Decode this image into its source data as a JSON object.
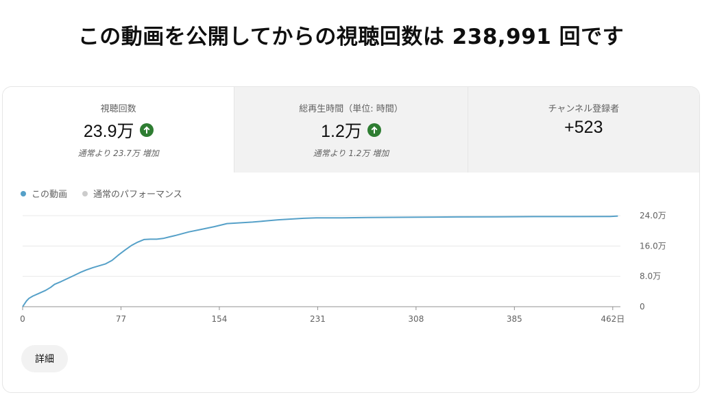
{
  "headline": "この動画を公開してからの視聴回数は 238,991 回です",
  "tabs": [
    {
      "label": "視聴回数",
      "value": "23.9万",
      "trend": "up",
      "subtext": "通常より 23.7万 増加"
    },
    {
      "label": "総再生時間（単位: 時間）",
      "value": "1.2万",
      "trend": "up",
      "subtext": "通常より 1.2万 増加"
    },
    {
      "label": "チャンネル登録者",
      "value": "+523"
    }
  ],
  "legend": [
    {
      "label": "この動画",
      "color": "#55a0c8"
    },
    {
      "label": "通常のパフォーマンス",
      "color": "#cccccc"
    }
  ],
  "details_label": "詳細",
  "colors": {
    "accent": "#55a0c8",
    "trend_up": "#2e7d32"
  },
  "chart_data": {
    "type": "line",
    "xlabel": "",
    "ylabel": "",
    "xlim": [
      0,
      468
    ],
    "ylim": [
      0,
      240000
    ],
    "x_ticks": [
      0,
      77,
      154,
      231,
      308,
      385,
      462
    ],
    "x_tick_labels": [
      "0",
      "77",
      "154",
      "231",
      "308",
      "385",
      "462日"
    ],
    "y_ticks": [
      0,
      80000,
      160000,
      240000
    ],
    "y_tick_labels": [
      "0",
      "8.0万",
      "16.0万",
      "24.0万"
    ],
    "grid": true,
    "series": [
      {
        "name": "この動画",
        "x": [
          0,
          3,
          5,
          8,
          12,
          18,
          22,
          25,
          30,
          35,
          40,
          45,
          50,
          55,
          60,
          65,
          70,
          75,
          80,
          85,
          90,
          95,
          100,
          105,
          110,
          115,
          120,
          130,
          140,
          150,
          160,
          170,
          180,
          190,
          200,
          210,
          220,
          230,
          250,
          270,
          290,
          310,
          340,
          370,
          400,
          430,
          460,
          466
        ],
        "y": [
          0,
          15000,
          22000,
          28000,
          34000,
          43000,
          51000,
          59000,
          66000,
          74000,
          82000,
          90000,
          97000,
          103000,
          108000,
          113000,
          122000,
          136000,
          149000,
          161000,
          170000,
          177000,
          178000,
          178000,
          180000,
          184000,
          188000,
          197000,
          204000,
          211000,
          219000,
          221000,
          223000,
          226000,
          229000,
          231000,
          233000,
          234000,
          234000,
          235000,
          235500,
          236000,
          236500,
          237000,
          237500,
          237500,
          237800,
          238991
        ]
      }
    ]
  }
}
